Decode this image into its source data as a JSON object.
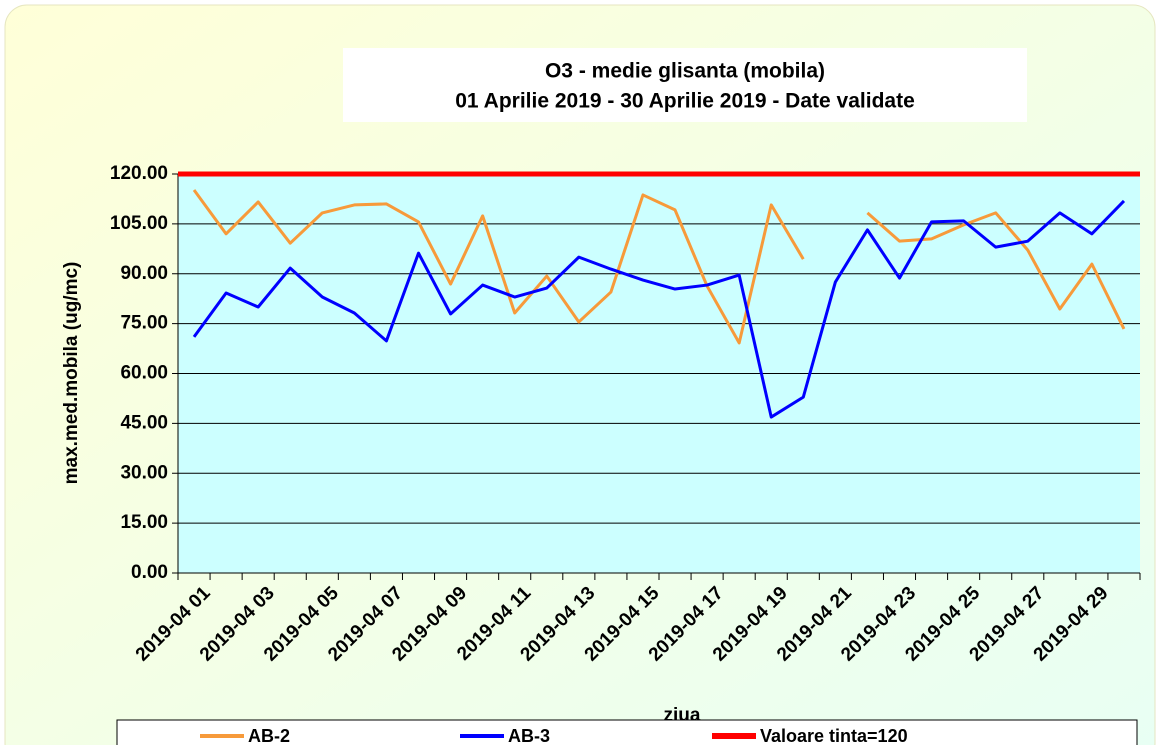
{
  "chart_data": {
    "type": "line",
    "title": "O3 - medie glisanta (mobila)",
    "subtitle": "01 Aprilie 2019 - 30 Aprilie  2019 -  Date validate",
    "x_label": "ziua",
    "y_label": "max.med.mobila (ug/mc)",
    "categories": [
      "2019-04 01",
      null,
      "2019-04 03",
      null,
      "2019-04 05",
      null,
      "2019-04 07",
      null,
      "2019-04 09",
      null,
      "2019-04 11",
      null,
      "2019-04 13",
      null,
      "2019-04 15",
      null,
      "2019-04 17",
      null,
      "2019-04 19",
      null,
      "2019-04 21",
      null,
      "2019-04 23",
      null,
      "2019-04 25",
      null,
      "2019-04 27",
      null,
      "2019-04 29",
      null
    ],
    "series": [
      {
        "name": "AB-2",
        "color": "#f79a3a",
        "values": [
          115.2,
          102,
          111.6,
          99.2,
          108.3,
          110.7,
          111,
          105.6,
          86.9,
          107.4,
          78.2,
          89.3,
          75.5,
          84.5,
          113.7,
          109.2,
          86.3,
          69.2,
          110.7,
          94.4,
          null,
          108.3,
          99.8,
          100.5,
          104.7,
          108.3,
          97.1,
          79.4,
          92.9,
          73.4
        ]
      },
      {
        "name": "AB-3",
        "color": "#0000ff",
        "values": [
          71,
          84.2,
          80,
          91.7,
          83,
          78.2,
          69.8,
          96.2,
          77.9,
          86.6,
          83,
          85.7,
          95,
          91.4,
          88.1,
          85.4,
          86.6,
          89.6,
          46.9,
          52.9,
          87.5,
          103.2,
          88.7,
          105.6,
          105.9,
          98,
          99.8,
          108.3,
          102,
          111.9
        ]
      }
    ],
    "target": {
      "name": "Valoare tinta=120",
      "value": 120,
      "color": "#ff0000"
    },
    "ylim": [
      0,
      120
    ],
    "yticks": [
      {
        "value": 0,
        "label": "0.00"
      },
      {
        "value": 15,
        "label": "15.00"
      },
      {
        "value": 30,
        "label": "30.00"
      },
      {
        "value": 45,
        "label": "45.00"
      },
      {
        "value": 60,
        "label": "60.00"
      },
      {
        "value": 75,
        "label": "75.00"
      },
      {
        "value": 90,
        "label": "90.00"
      },
      {
        "value": 105,
        "label": "105.00"
      },
      {
        "value": 120,
        "label": "120.00"
      }
    ],
    "grid": true,
    "legend": "bottom"
  }
}
